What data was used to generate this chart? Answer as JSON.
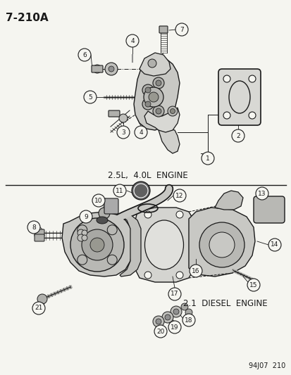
{
  "title": "7-210A",
  "bg_color": "#f5f5f0",
  "line_color": "#1a1a1a",
  "text_color": "#1a1a1a",
  "label1": "2.5L,  4.0L  ENGINE",
  "label2": "2.1  DIESEL  ENGINE",
  "footer": "94J07  210",
  "fig_width": 4.14,
  "fig_height": 5.33,
  "dpi": 100
}
